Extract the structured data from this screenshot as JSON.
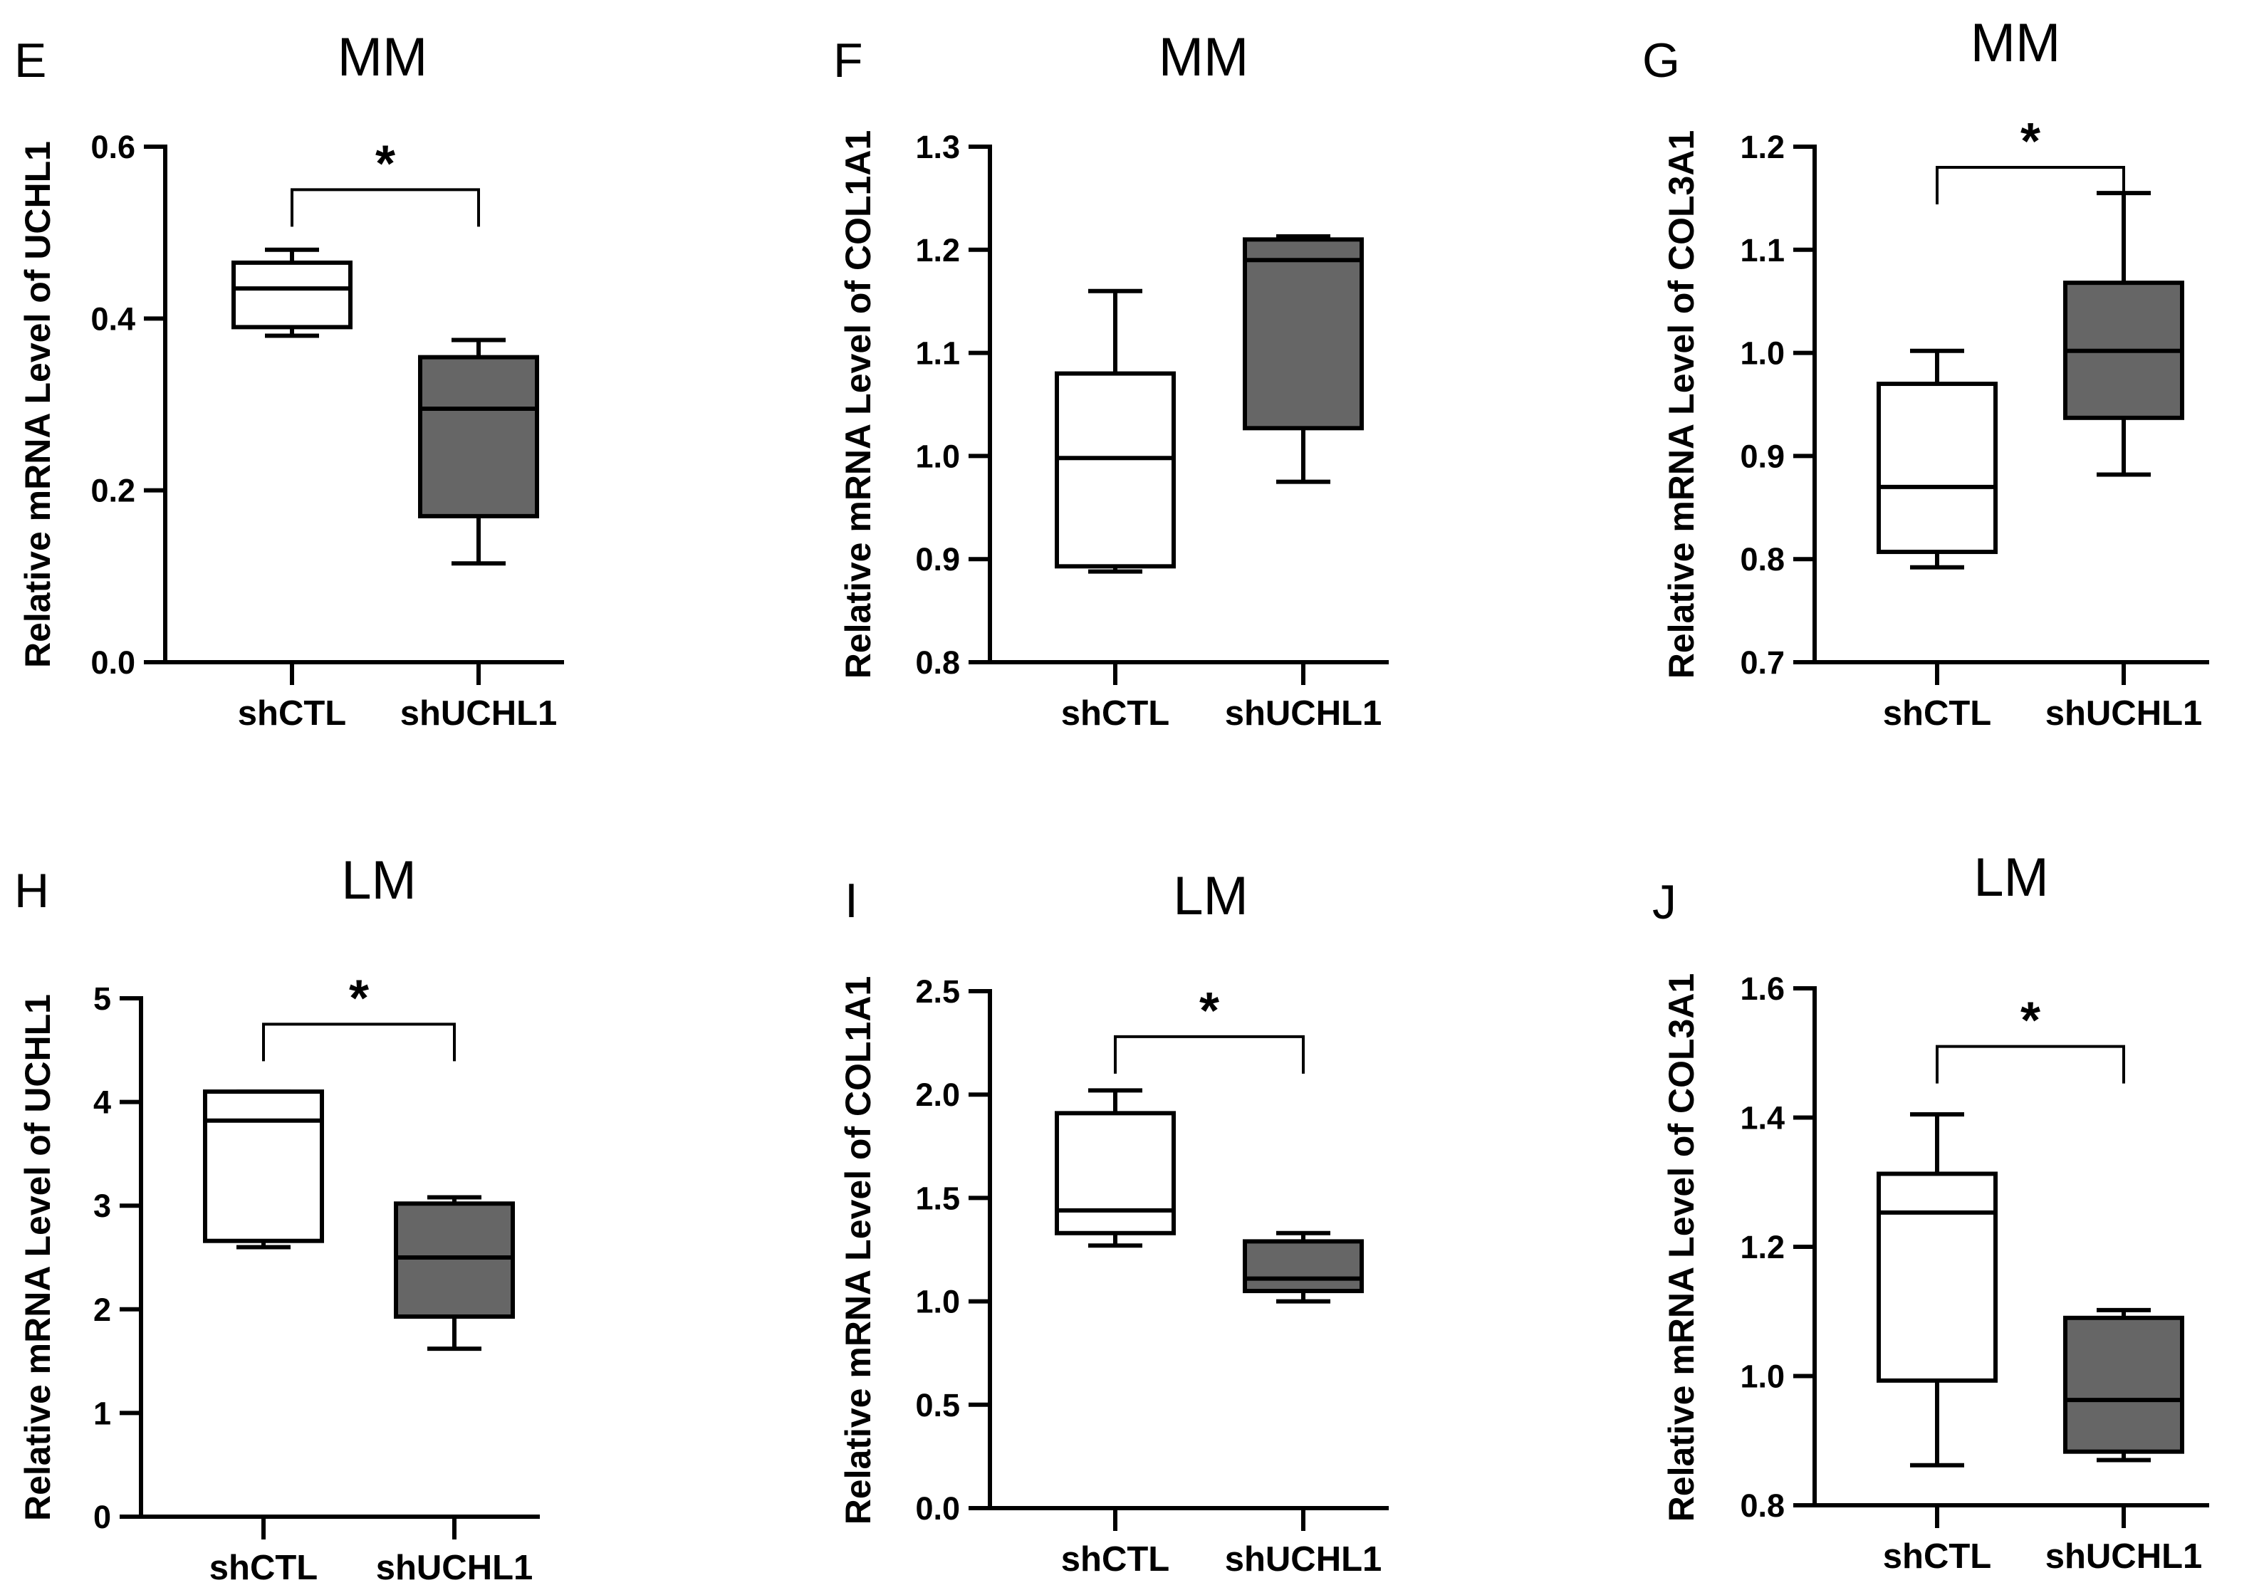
{
  "figure": {
    "colors": {
      "ink": "#000000",
      "control_fill": "#ffffff",
      "treatment_fill": "#666666"
    }
  },
  "chart_data": [
    {
      "panel": "E",
      "title": "MM",
      "type": "box",
      "ylabel": "Relative mRNA Level of UCHL1",
      "categories": [
        "shCTL",
        "shUCHL1"
      ],
      "ylim": [
        0.0,
        0.6
      ],
      "yticks": [
        "0.0",
        "0.2",
        "0.4",
        "0.6"
      ],
      "boxes": [
        {
          "name": "shCTL",
          "min": 0.38,
          "q1": 0.39,
          "median": 0.435,
          "q3": 0.465,
          "max": 0.48
        },
        {
          "name": "shUCHL1",
          "min": 0.115,
          "q1": 0.17,
          "median": 0.295,
          "q3": 0.355,
          "max": 0.375
        }
      ],
      "significance": {
        "label": "*",
        "pair": [
          "shCTL",
          "shUCHL1"
        ],
        "bracket_y": 0.55
      }
    },
    {
      "panel": "F",
      "title": "MM",
      "type": "box",
      "ylabel": "Relative mRNA Level of COL1A1",
      "categories": [
        "shCTL",
        "shUCHL1"
      ],
      "ylim": [
        0.8,
        1.3
      ],
      "yticks": [
        "0.8",
        "0.9",
        "1.0",
        "1.1",
        "1.2",
        "1.3"
      ],
      "boxes": [
        {
          "name": "shCTL",
          "min": 0.888,
          "q1": 0.893,
          "median": 0.998,
          "q3": 1.08,
          "max": 1.16
        },
        {
          "name": "shUCHL1",
          "min": 0.975,
          "q1": 1.027,
          "median": 1.19,
          "q3": 1.21,
          "max": 1.213
        }
      ],
      "significance": null
    },
    {
      "panel": "G",
      "title": "MM",
      "type": "box",
      "ylabel": "Relative mRNA Level of COL3A1",
      "categories": [
        "shCTL",
        "shUCHL1"
      ],
      "ylim": [
        0.7,
        1.2
      ],
      "yticks": [
        "0.7",
        "0.8",
        "0.9",
        "1.0",
        "1.1",
        "1.2"
      ],
      "boxes": [
        {
          "name": "shCTL",
          "min": 0.792,
          "q1": 0.807,
          "median": 0.87,
          "q3": 0.97,
          "max": 1.002
        },
        {
          "name": "shUCHL1",
          "min": 0.882,
          "q1": 0.937,
          "median": 1.002,
          "q3": 1.068,
          "max": 1.155
        }
      ],
      "significance": {
        "label": "*",
        "pair": [
          "shCTL",
          "shUCHL1"
        ],
        "bracket_y": 1.18
      }
    },
    {
      "panel": "H",
      "title": "LM",
      "type": "box",
      "ylabel": "Relative mRNA Level of UCHL1",
      "categories": [
        "shCTL",
        "shUCHL1"
      ],
      "ylim": [
        0,
        5
      ],
      "yticks": [
        "0",
        "1",
        "2",
        "3",
        "4",
        "5"
      ],
      "boxes": [
        {
          "name": "shCTL",
          "min": 2.6,
          "q1": 2.66,
          "median": 3.82,
          "q3": 4.1,
          "max": 4.1
        },
        {
          "name": "shUCHL1",
          "min": 1.62,
          "q1": 1.93,
          "median": 2.5,
          "q3": 3.02,
          "max": 3.08
        }
      ],
      "significance": {
        "label": "*",
        "pair": [
          "shCTL",
          "shUCHL1"
        ],
        "bracket_y": 4.75
      }
    },
    {
      "panel": "I",
      "title": "LM",
      "type": "box",
      "ylabel": "Relative mRNA Level of COL1A1",
      "categories": [
        "shCTL",
        "shUCHL1"
      ],
      "ylim": [
        0.0,
        2.5
      ],
      "yticks": [
        "0.0",
        "0.5",
        "1.0",
        "1.5",
        "2.0",
        "2.5"
      ],
      "boxes": [
        {
          "name": "shCTL",
          "min": 1.27,
          "q1": 1.33,
          "median": 1.44,
          "q3": 1.91,
          "max": 2.02
        },
        {
          "name": "shUCHL1",
          "min": 1.0,
          "q1": 1.05,
          "median": 1.11,
          "q3": 1.29,
          "max": 1.33
        }
      ],
      "significance": {
        "label": "*",
        "pair": [
          "shCTL",
          "shUCHL1"
        ],
        "bracket_y": 2.28
      }
    },
    {
      "panel": "J",
      "title": "LM",
      "type": "box",
      "ylabel": "Relative mRNA Level of COL3A1",
      "categories": [
        "shCTL",
        "shUCHL1"
      ],
      "ylim": [
        0.8,
        1.6
      ],
      "yticks": [
        "0.8",
        "1.0",
        "1.2",
        "1.4",
        "1.6"
      ],
      "boxes": [
        {
          "name": "shCTL",
          "min": 0.862,
          "q1": 0.993,
          "median": 1.253,
          "q3": 1.313,
          "max": 1.405
        },
        {
          "name": "shUCHL1",
          "min": 0.87,
          "q1": 0.883,
          "median": 0.963,
          "q3": 1.09,
          "max": 1.102
        }
      ],
      "significance": {
        "label": "*",
        "pair": [
          "shCTL",
          "shUCHL1"
        ],
        "bracket_y": 1.51
      }
    }
  ]
}
